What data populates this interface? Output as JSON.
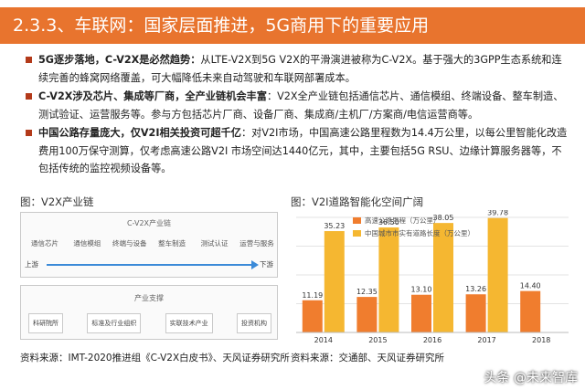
{
  "header": {
    "title": "2.3.3、车联网：国家层面推进，5G商用下的重要应用"
  },
  "bullets": [
    {
      "bold": "5G逐步落地，C-V2X是必然趋势：",
      "text": "从LTE-V2X到5G V2X的平滑演进被称为C-V2X。基于强大的3GPP生态系统和连续完善的蜂窝网络覆盖，可大幅降低未来自动驾驶和车联网部署成本。"
    },
    {
      "bold": "C-V2X涉及芯片、集成等厂商，全产业链机会丰富",
      "text": "：V2X全产业链包括通信芯片、通信模组、终端设备、整车制造、测试验证、运营服务等。参与方包括芯片厂商、设备厂商、集成商/主机厂/方案商/电信运营商等。"
    },
    {
      "bold": "中国公路存量庞大，仅V2I相关投资可超千亿",
      "text": "：对V2I市场，中国高速公路里程数为14.4万公里，以每公里智能化改造费用100万保守测算，仅考虑高速公路V2I 市场空间达1440亿元，其中，主要包括5G RSU、边缘计算服务器等，不包括传统的监控视频设备等。"
    }
  ],
  "left_figure": {
    "label": "图：V2X产业链",
    "chain_title": "C-V2X产业链",
    "chain_items": [
      "通信芯片",
      "通信模组",
      "终端与设备",
      "整车制造",
      "测试认证",
      "运营与服务"
    ],
    "upstream": "上游",
    "downstream": "下游",
    "support_title": "产业支撑",
    "support_items": [
      "科研院所",
      "标准及行业组织",
      "实联技术产业",
      "投资机构"
    ],
    "source": "资料来源：IMT-2020推进组《C-V2X白皮书》、天风证券研究所"
  },
  "right_figure": {
    "label": "图：V2I道路智能化空间广阔",
    "source": "资料来源：交通部、天风证券研究所"
  },
  "chart_data": {
    "type": "bar",
    "categories": [
      "2014",
      "2015",
      "2016",
      "2017",
      "2018"
    ],
    "series": [
      {
        "name": "高速公路里程（万公里）",
        "values": [
          11.19,
          12.35,
          13.1,
          13.26,
          14.4
        ],
        "labels": [
          "11.19",
          "12.35",
          "13.10",
          "13.26",
          "14.40"
        ]
      },
      {
        "name": "中国城市市实有道路长度（万公里）",
        "values": [
          35.23,
          36.5,
          38.05,
          39.78,
          null
        ],
        "labels": [
          "35.23",
          "36.50",
          "38.05",
          "39.78",
          ""
        ]
      }
    ],
    "ylim": [
      0,
      40
    ],
    "grid": true,
    "legend": "top-left",
    "colors": [
      "#f07d2e",
      "#f5b731"
    ]
  },
  "watermark": "头条 @未来智库"
}
